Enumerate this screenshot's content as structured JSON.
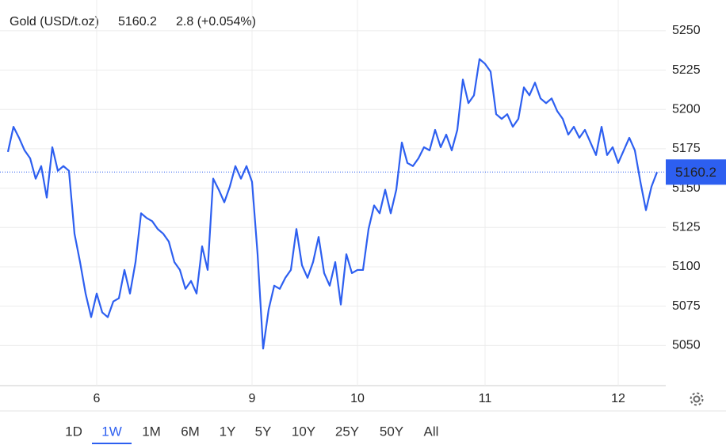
{
  "chart_data": {
    "type": "line",
    "title": "Gold (USD/t.oz)",
    "price": 5160.2,
    "change": "2.8 (+0.054%)",
    "color": "#2d5ff0",
    "change_color": "#2bb52b",
    "grid": true,
    "categories": [
      null,
      null,
      null,
      null,
      null,
      null,
      null,
      null,
      null,
      null,
      null,
      null,
      null,
      null,
      null,
      null,
      "6",
      null,
      null,
      null,
      null,
      null,
      null,
      null,
      null,
      null,
      null,
      null,
      null,
      null,
      null,
      null,
      null,
      null,
      null,
      null,
      null,
      null,
      null,
      null,
      null,
      null,
      null,
      null,
      "9",
      null,
      null,
      null,
      null,
      null,
      null,
      null,
      null,
      null,
      null,
      null,
      null,
      null,
      null,
      null,
      null,
      null,
      null,
      "10",
      null,
      null,
      null,
      null,
      null,
      null,
      null,
      null,
      null,
      null,
      null,
      null,
      null,
      null,
      null,
      null,
      null,
      null,
      null,
      null,
      null,
      null,
      "11",
      null,
      null,
      null,
      null,
      null,
      null,
      null,
      null,
      null,
      null,
      null,
      null,
      null,
      null,
      null,
      null,
      null,
      null,
      null,
      null,
      null,
      null,
      null,
      "12",
      null,
      null,
      null,
      null,
      null,
      null,
      null
    ],
    "values": [
      5173,
      5189,
      5182,
      5174,
      5169,
      5156,
      5164,
      5144,
      5176,
      5161,
      5164,
      5161,
      5121,
      5103,
      5083,
      5068,
      5083,
      5071,
      5068,
      5078,
      5080,
      5098,
      5083,
      5103,
      5134,
      5131,
      5129,
      5124,
      5121,
      5116,
      5103,
      5098,
      5086,
      5091,
      5083,
      5113,
      5098,
      5156,
      5149,
      5141,
      5151,
      5164,
      5156,
      5164,
      5154,
      5108,
      5048,
      5073,
      5088,
      5086,
      5093,
      5098,
      5124,
      5101,
      5093,
      5103,
      5119,
      5096,
      5088,
      5103,
      5076,
      5108,
      5096,
      5098,
      5098,
      5124,
      5139,
      5134,
      5149,
      5134,
      5149,
      5179,
      5166,
      5164,
      5169,
      5176,
      5174,
      5187,
      5176,
      5184,
      5174,
      5187,
      5219,
      5204,
      5209,
      5232,
      5229,
      5224,
      5197,
      5194,
      5197,
      5189,
      5194,
      5214,
      5209,
      5217,
      5207,
      5204,
      5207,
      5199,
      5194,
      5184,
      5189,
      5182,
      5187,
      5179,
      5171,
      5189,
      5171,
      5176,
      5166,
      5174,
      5182,
      5174,
      5154,
      5136,
      5151,
      5160.2
    ],
    "ylim": [
      5025,
      5262
    ],
    "yticks": [
      5050,
      5075,
      5100,
      5125,
      5150,
      5175,
      5200,
      5225,
      5250
    ],
    "ranges": [
      "1D",
      "1W",
      "1M",
      "6M",
      "1Y",
      "5Y",
      "10Y",
      "25Y",
      "50Y",
      "All"
    ],
    "selected_range": 1
  }
}
